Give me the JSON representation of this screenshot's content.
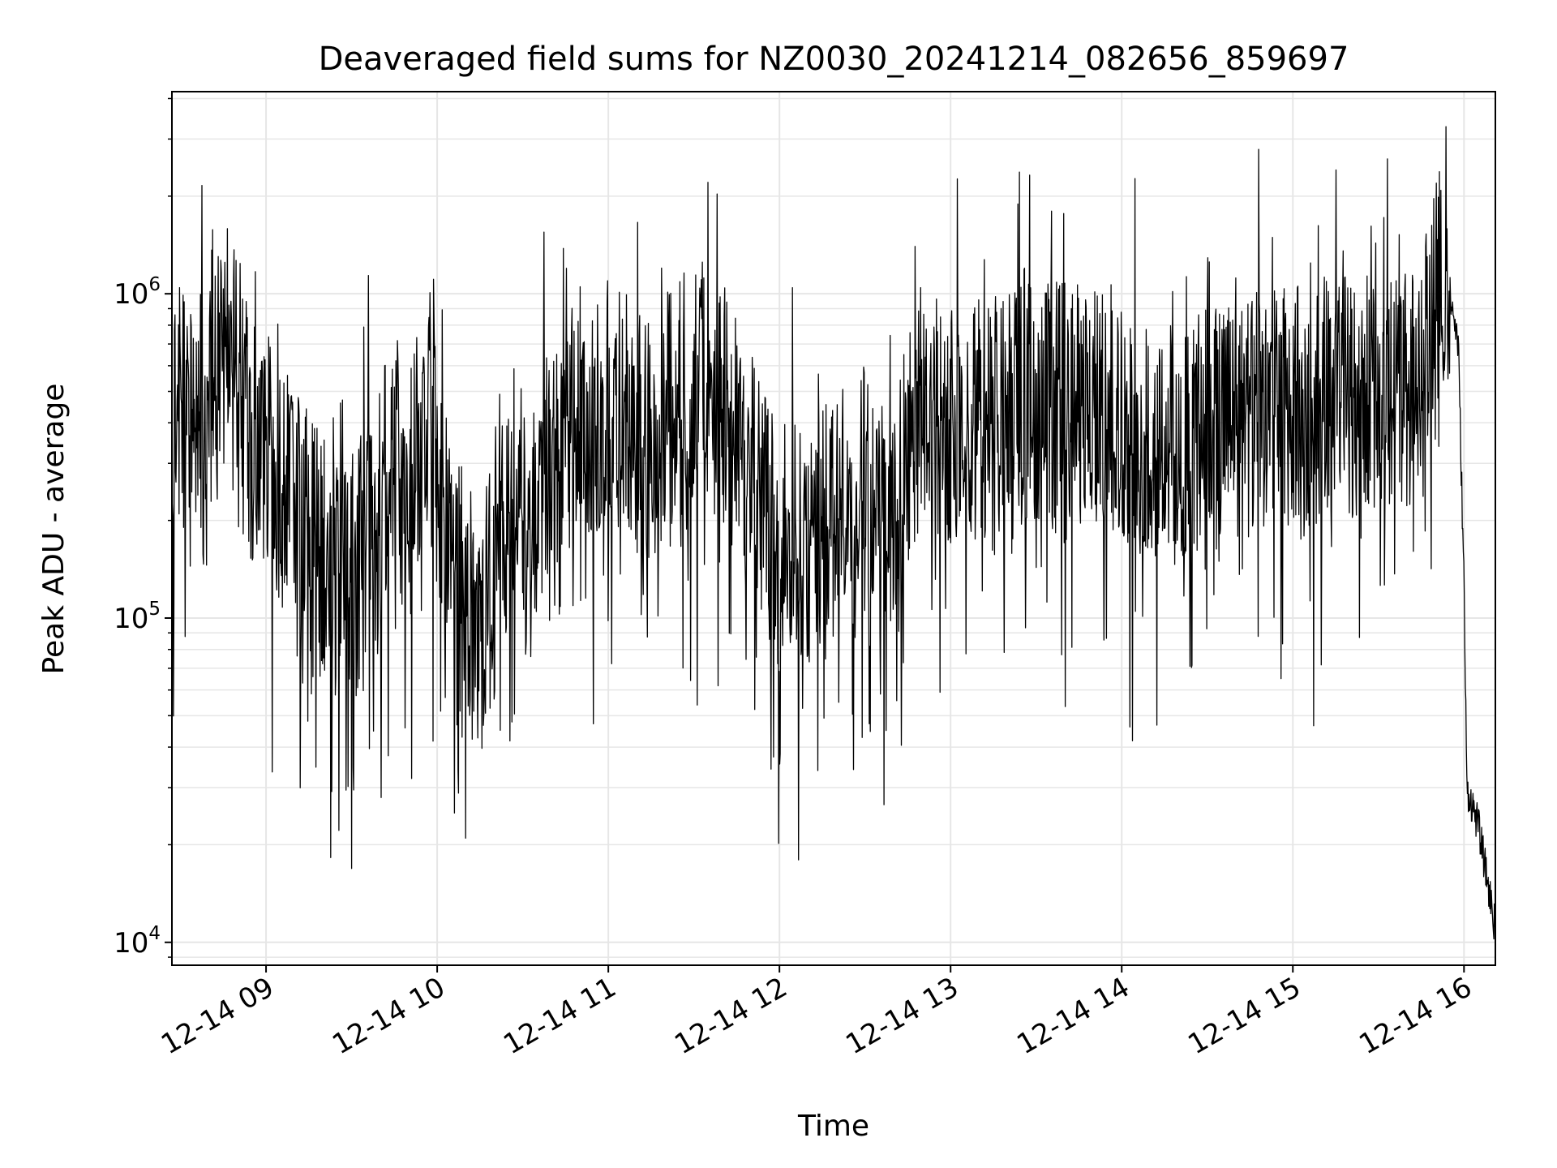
{
  "chart_data": {
    "type": "line",
    "title": "Deaveraged field sums for NZ0030_20241214_082656_859697",
    "xlabel": "Time",
    "ylabel": "Peak ADU - average",
    "yscale": "log",
    "ylim": [
      8500,
      4200000
    ],
    "xlim": [
      "2024-12-14 08:27",
      "2024-12-14 16:11"
    ],
    "x_ticks": [
      "12-14 09",
      "12-14 10",
      "12-14 11",
      "12-14 12",
      "12-14 13",
      "12-14 14",
      "12-14 15",
      "12-14 16"
    ],
    "y_ticks": [
      {
        "value": 10000,
        "base": "10",
        "exp": "4"
      },
      {
        "value": 100000,
        "base": "10",
        "exp": "5"
      },
      {
        "value": 1000000,
        "base": "10",
        "exp": "6"
      }
    ],
    "grid": true,
    "line_color": "#000000",
    "grid_color": "#e6e6e6",
    "series": [
      {
        "x": [
          "2024-12-14 08:27",
          "2024-12-14 08:35",
          "2024-12-14 08:45",
          "2024-12-14 08:52",
          "2024-12-14 08:55",
          "2024-12-14 09:00",
          "2024-12-14 09:05",
          "2024-12-14 09:15",
          "2024-12-14 09:25",
          "2024-12-14 09:35",
          "2024-12-14 09:45",
          "2024-12-14 09:50",
          "2024-12-14 09:58",
          "2024-12-14 10:05",
          "2024-12-14 10:15",
          "2024-12-14 10:25",
          "2024-12-14 10:35",
          "2024-12-14 10:45",
          "2024-12-14 11:00",
          "2024-12-14 11:15",
          "2024-12-14 11:30",
          "2024-12-14 11:40",
          "2024-12-14 11:50",
          "2024-12-14 12:00",
          "2024-12-14 12:15",
          "2024-12-14 12:30",
          "2024-12-14 12:40",
          "2024-12-14 12:50",
          "2024-12-14 13:00",
          "2024-12-14 13:15",
          "2024-12-14 13:30",
          "2024-12-14 13:45",
          "2024-12-14 14:00",
          "2024-12-14 14:15",
          "2024-12-14 14:30",
          "2024-12-14 14:45",
          "2024-12-14 15:00",
          "2024-12-14 15:15",
          "2024-12-14 15:30",
          "2024-12-14 15:45",
          "2024-12-14 15:52",
          "2024-12-14 15:55",
          "2024-12-14 15:58",
          "2024-12-14 16:00",
          "2024-12-14 16:01",
          "2024-12-14 16:05",
          "2024-12-14 16:11"
        ],
        "values": [
          450000,
          420000,
          550000,
          600000,
          330000,
          350000,
          260000,
          180000,
          140000,
          160000,
          320000,
          250000,
          400000,
          140000,
          90000,
          200000,
          250000,
          400000,
          450000,
          350000,
          550000,
          500000,
          300000,
          150000,
          200000,
          250000,
          180000,
          500000,
          380000,
          420000,
          480000,
          450000,
          400000,
          350000,
          380000,
          420000,
          450000,
          480000,
          500000,
          550000,
          1100000,
          1000000,
          700000,
          130000,
          30000,
          23000,
          11000
        ]
      }
    ]
  }
}
